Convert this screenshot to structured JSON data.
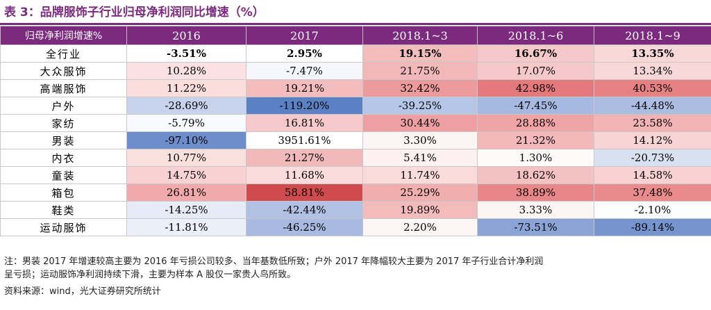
{
  "title": "表 3：品牌服饰子行业归母净利润同比增速（%）",
  "header": [
    "归母净利润增速%",
    "2016",
    "2017",
    "2018.1~3",
    "2018.1~6",
    "2018.1~9"
  ],
  "rows": [
    {
      "label": "全行业",
      "bold": true,
      "cells": [
        {
          "v": "-3.51%",
          "c": "#fefefe"
        },
        {
          "v": "2.95%",
          "c": "#ffffff"
        },
        {
          "v": "19.15%",
          "c": "#f3bcbd"
        },
        {
          "v": "16.67%",
          "c": "#f5c9ca"
        },
        {
          "v": "13.35%",
          "c": "#f8d7d8"
        }
      ]
    },
    {
      "label": "大众服饰",
      "bold": false,
      "cells": [
        {
          "v": "10.28%",
          "c": "#fbe1e1"
        },
        {
          "v": "-7.47%",
          "c": "#f4f6fb"
        },
        {
          "v": "21.75%",
          "c": "#f2b7b8"
        },
        {
          "v": "17.07%",
          "c": "#f5c8c9"
        },
        {
          "v": "13.34%",
          "c": "#f8d7d8"
        }
      ]
    },
    {
      "label": "高端服饰",
      "bold": false,
      "cells": [
        {
          "v": "11.22%",
          "c": "#fadddd"
        },
        {
          "v": "19.21%",
          "c": "#f3bcbd"
        },
        {
          "v": "32.42%",
          "c": "#ed9a9c"
        },
        {
          "v": "42.98%",
          "c": "#e4797b"
        },
        {
          "v": "40.53%",
          "c": "#e68183"
        }
      ]
    },
    {
      "label": "户外",
      "bold": false,
      "cells": [
        {
          "v": "-28.69%",
          "c": "#c7d3ec"
        },
        {
          "v": "-119.20%",
          "c": "#5b80c4"
        },
        {
          "v": "-39.25%",
          "c": "#b6c6e6"
        },
        {
          "v": "-47.45%",
          "c": "#a6b9e0"
        },
        {
          "v": "-44.48%",
          "c": "#acbde2"
        }
      ]
    },
    {
      "label": "家纺",
      "bold": false,
      "cells": [
        {
          "v": "-5.79%",
          "c": "#f8f9fc"
        },
        {
          "v": "16.81%",
          "c": "#f6cacb"
        },
        {
          "v": "30.44%",
          "c": "#ee9fa1"
        },
        {
          "v": "28.88%",
          "c": "#efa4a6"
        },
        {
          "v": "23.58%",
          "c": "#f2b3b4"
        }
      ]
    },
    {
      "label": "男装",
      "bold": false,
      "cells": [
        {
          "v": "-97.10%",
          "c": "#6e8dcb"
        },
        {
          "v": "3951.61%",
          "c": "#ffffff"
        },
        {
          "v": "3.30%",
          "c": "#fdf4f4"
        },
        {
          "v": "21.32%",
          "c": "#f3b9ba"
        },
        {
          "v": "14.12%",
          "c": "#f8d4d5"
        }
      ]
    },
    {
      "label": "内衣",
      "bold": false,
      "cells": [
        {
          "v": "10.77%",
          "c": "#fadfdf"
        },
        {
          "v": "21.27%",
          "c": "#f2b9ba"
        },
        {
          "v": "5.41%",
          "c": "#fdf0f0"
        },
        {
          "v": "1.30%",
          "c": "#fefafa"
        },
        {
          "v": "-20.73%",
          "c": "#d9e1f1"
        }
      ]
    },
    {
      "label": "童装",
      "bold": false,
      "cells": [
        {
          "v": "14.75%",
          "c": "#f8d2d3"
        },
        {
          "v": "11.68%",
          "c": "#fadcdc"
        },
        {
          "v": "11.74%",
          "c": "#fadbdb"
        },
        {
          "v": "18.62%",
          "c": "#f4c1c2"
        },
        {
          "v": "14.58%",
          "c": "#f8d2d3"
        }
      ]
    },
    {
      "label": "箱包",
      "bold": false,
      "cells": [
        {
          "v": "26.81%",
          "c": "#f0aaab"
        },
        {
          "v": "58.81%",
          "c": "#cf4b4d"
        },
        {
          "v": "25.29%",
          "c": "#f1aeaf"
        },
        {
          "v": "38.89%",
          "c": "#e88789"
        },
        {
          "v": "37.48%",
          "c": "#e98b8d"
        }
      ]
    },
    {
      "label": "鞋类",
      "bold": false,
      "cells": [
        {
          "v": "-14.25%",
          "c": "#e6ebf6"
        },
        {
          "v": "-42.44%",
          "c": "#b1c1e4"
        },
        {
          "v": "19.89%",
          "c": "#f3bbbc"
        },
        {
          "v": "3.33%",
          "c": "#fdf4f4"
        },
        {
          "v": "-2.10%",
          "c": "#fbfcfe"
        }
      ]
    },
    {
      "label": "运动服饰",
      "bold": false,
      "cells": [
        {
          "v": "-11.81%",
          "c": "#ebeff8"
        },
        {
          "v": "-46.25%",
          "c": "#a8bae1"
        },
        {
          "v": "2.20%",
          "c": "#fdf6f6"
        },
        {
          "v": "-73.51%",
          "c": "#8ba4d6"
        },
        {
          "v": "-89.14%",
          "c": "#7694ce"
        }
      ]
    }
  ],
  "notes": {
    "line1": "注：男装 2017 年增速较高主要为 2016 年亏损公司较多、当年基数低所致；户外 2017 年降幅较大主要为 2017 年子行业合计净利润",
    "line2": "呈亏损；运动服饰净利润持续下滑，主要为样本 A 股仅一家贵人鸟所致。",
    "source": "资料来源：wind，光大证券研究所统计"
  }
}
